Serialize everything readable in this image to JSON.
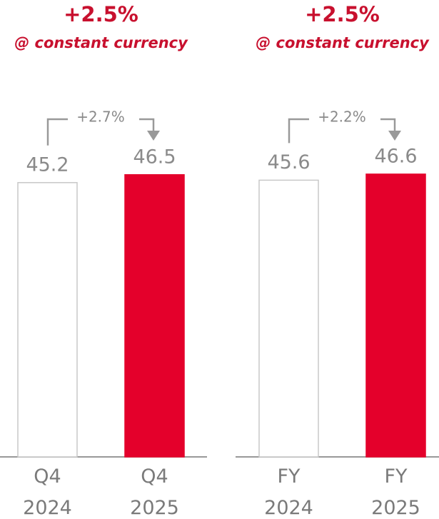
{
  "chart_data": [
    {
      "type": "bar",
      "title": "+2.5%",
      "subtitle": "@ constant currency",
      "annotation": "+2.7%",
      "categories": [
        "Q4 2024",
        "Q4 2025"
      ],
      "values": [
        45.2,
        46.5
      ],
      "colors": [
        "#ffffff",
        "#e4002b"
      ]
    },
    {
      "type": "bar",
      "title": "+2.5%",
      "subtitle": "@ constant currency",
      "annotation": "+2.2%",
      "categories": [
        "FY 2024",
        "FY 2025"
      ],
      "values": [
        45.6,
        46.6
      ],
      "colors": [
        "#ffffff",
        "#e4002b"
      ]
    }
  ]
}
